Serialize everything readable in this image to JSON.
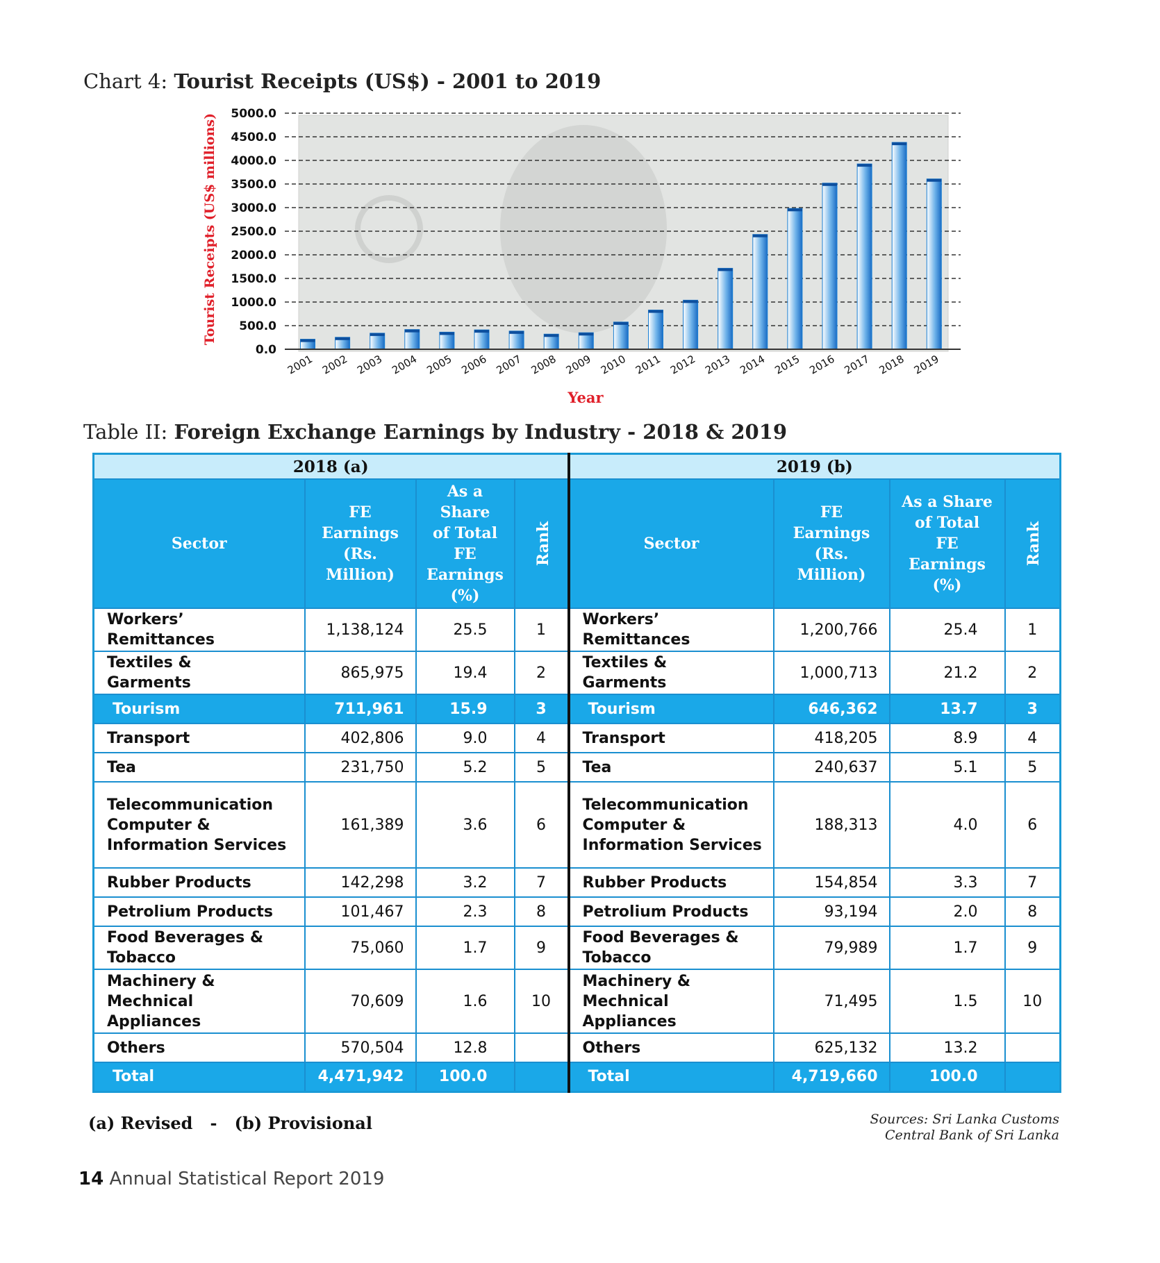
{
  "chart": {
    "title_prefix": "Chart 4: ",
    "title_bold": "Tourist Receipts (US$) - 2001 to 2019"
  },
  "chart_data": {
    "type": "bar",
    "title": "Tourist Receipts (US$) - 2001 to 2019",
    "xlabel": "Year",
    "ylabel": "Tourist Receipts (US$ millions)",
    "categories": [
      "2001",
      "2002",
      "2003",
      "2004",
      "2005",
      "2006",
      "2007",
      "2008",
      "2009",
      "2010",
      "2011",
      "2012",
      "2013",
      "2014",
      "2015",
      "2016",
      "2017",
      "2018",
      "2019"
    ],
    "values": [
      212,
      253,
      340,
      417,
      362,
      410,
      385,
      320,
      350,
      576,
      830,
      1039,
      1715,
      2431,
      2981,
      3518,
      3925,
      4381,
      3607
    ],
    "yticks": [
      "0.0",
      "500.0",
      "1000.0",
      "1500.0",
      "2000.0",
      "2500.0",
      "3000.0",
      "3500.0",
      "4000.0",
      "4500.0",
      "5000.0"
    ],
    "ylim": [
      0,
      5000
    ],
    "grid": true,
    "bar_color": "#1a7fd4",
    "axis_label_color": "#e0202a"
  },
  "table": {
    "title_prefix": "Table II: ",
    "title_bold": "Foreign Exchange Earnings by Industry - 2018 & 2019",
    "year_2018": "2018 (a)",
    "year_2019": "2019 (b)",
    "headers": {
      "sector": "Sector",
      "fe1": "FE",
      "fe2": "Earnings",
      "fe3": "(Rs. Million)",
      "sh1": "As a Share",
      "sh2": "of Total",
      "sh3": "FE Earnings",
      "sh4": "(%)",
      "rank": "Rank"
    },
    "rows": [
      {
        "s1": "Workers’",
        "s2": "Remittances",
        "s3": "",
        "e18": "1,138,124",
        "p18": "25.5",
        "r18": "1",
        "e19": "1,200,766",
        "p19": "25.4",
        "r19": "1"
      },
      {
        "s1": "Textiles &",
        "s2": "Garments",
        "s3": "",
        "e18": "865,975",
        "p18": "19.4",
        "r18": "2",
        "e19": "1,000,713",
        "p19": "21.2",
        "r19": "2"
      },
      {
        "s1": "Tourism",
        "s2": "",
        "s3": "",
        "e18": "711,961",
        "p18": "15.9",
        "r18": "3",
        "e19": "646,362",
        "p19": "13.7",
        "r19": "3"
      },
      {
        "s1": "Transport",
        "s2": "",
        "s3": "",
        "e18": "402,806",
        "p18": "9.0",
        "r18": "4",
        "e19": "418,205",
        "p19": "8.9",
        "r19": "4"
      },
      {
        "s1": "Tea",
        "s2": "",
        "s3": "",
        "e18": "231,750",
        "p18": "5.2",
        "r18": "5",
        "e19": "240,637",
        "p19": "5.1",
        "r19": "5"
      },
      {
        "s1": "Telecommunication",
        "s2": "Computer &",
        "s3": "Information Services",
        "e18": "161,389",
        "p18": "3.6",
        "r18": "6",
        "e19": "188,313",
        "p19": "4.0",
        "r19": "6"
      },
      {
        "s1": "Rubber Products",
        "s2": "",
        "s3": "",
        "e18": "142,298",
        "p18": "3.2",
        "r18": "7",
        "e19": "154,854",
        "p19": "3.3",
        "r19": "7"
      },
      {
        "s1": "Petrolium Products",
        "s2": "",
        "s3": "",
        "e18": "101,467",
        "p18": "2.3",
        "r18": "8",
        "e19": "93,194",
        "p19": "2.0",
        "r19": "8"
      },
      {
        "s1": "Food Beverages &",
        "s2": "Tobacco",
        "s3": "",
        "e18": "75,060",
        "p18": "1.7",
        "r18": "9",
        "e19": "79,989",
        "p19": "1.7",
        "r19": "9"
      },
      {
        "s1": "Machinery &",
        "s2": "Mechnical",
        "s3": "Appliances",
        "e18": "70,609",
        "p18": "1.6",
        "r18": "10",
        "e19": "71,495",
        "p19": "1.5",
        "r19": "10"
      },
      {
        "s1": "Others",
        "s2": "",
        "s3": "",
        "e18": "570,504",
        "p18": "12.8",
        "r18": "",
        "e19": "625,132",
        "p19": "13.2",
        "r19": ""
      },
      {
        "s1": "Total",
        "s2": "",
        "s3": "",
        "e18": "4,471,942",
        "p18": "100.0",
        "r18": "",
        "e19": "4,719,660",
        "p19": "100.0",
        "r19": ""
      }
    ],
    "highlight_color": "#1aa8e8"
  },
  "notes": {
    "revised": "(a) Revised",
    "sep": "-",
    "provisional": "(b) Provisional"
  },
  "sources": {
    "line1": "Sources: Sri Lanka Customs",
    "line2": "Central Bank of Sri Lanka"
  },
  "footer": {
    "page": "14",
    "text": "Annual Statistical Report 2019"
  }
}
